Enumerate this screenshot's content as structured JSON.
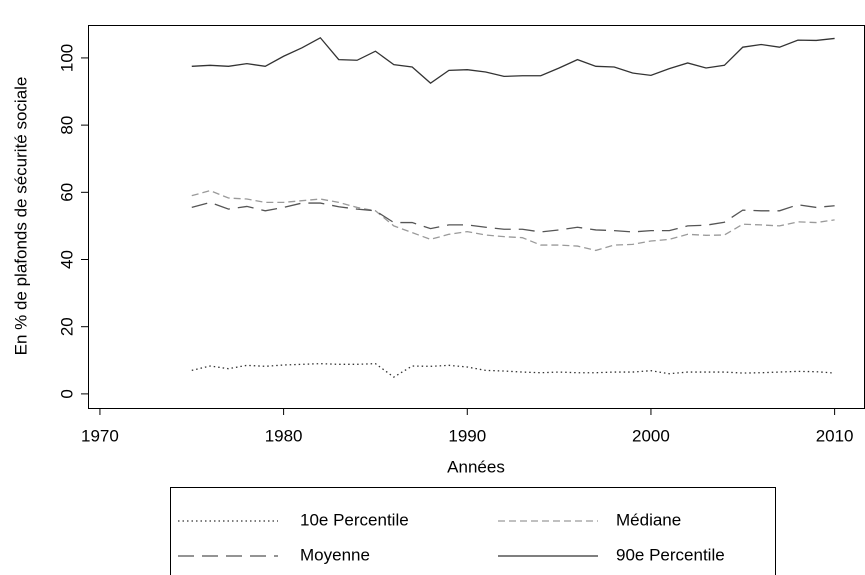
{
  "chart_data": {
    "type": "line",
    "xlabel": "Années",
    "ylabel": "En % de plafonds de sécurité sociale",
    "x": [
      1975,
      1976,
      1977,
      1978,
      1979,
      1980,
      1981,
      1982,
      1983,
      1984,
      1985,
      1986,
      1987,
      1988,
      1989,
      1990,
      1991,
      1992,
      1993,
      1994,
      1995,
      1996,
      1997,
      1998,
      1999,
      2000,
      2001,
      2002,
      2003,
      2004,
      2005,
      2006,
      2007,
      2008,
      2009,
      2010
    ],
    "series": [
      {
        "name": "10e Percentile",
        "color": "#333333",
        "linestyle": "dotted",
        "values": [
          7,
          8.3,
          7.5,
          8.5,
          8.2,
          8.6,
          8.8,
          9,
          8.8,
          8.8,
          9,
          5,
          8.3,
          8.2,
          8.5,
          8,
          7,
          6.8,
          6.5,
          6.3,
          6.5,
          6.3,
          6.3,
          6.5,
          6.5,
          6.9,
          6,
          6.5,
          6.5,
          6.5,
          6.2,
          6.3,
          6.5,
          6.7,
          6.6,
          6.2
        ]
      },
      {
        "name": "Médiane",
        "color": "#9a9a9a",
        "linestyle": "dashed",
        "values": [
          59,
          60.5,
          58.3,
          58,
          57,
          57,
          57.5,
          58,
          57,
          55.5,
          54.5,
          50,
          48,
          46,
          47.5,
          48.3,
          47.3,
          46.8,
          46.5,
          44.3,
          44.3,
          44,
          42.7,
          44.3,
          44.5,
          45.5,
          46,
          47.5,
          47.2,
          47.3,
          50.5,
          50.3,
          50,
          51.2,
          51,
          51.8
        ]
      },
      {
        "name": "Moyenne",
        "color": "#555555",
        "linestyle": "longdash",
        "values": [
          55.5,
          57,
          55,
          55.8,
          54.5,
          55.5,
          56.8,
          56.8,
          55.7,
          55,
          54.5,
          51,
          51,
          49.2,
          50.3,
          50.3,
          49.6,
          49,
          49,
          48.2,
          48.8,
          49.6,
          48.8,
          48.6,
          48.2,
          48.6,
          48.6,
          50,
          50.2,
          51.1,
          54.7,
          54.5,
          54.5,
          56.3,
          55.5,
          56
        ]
      },
      {
        "name": "90e Percentile",
        "color": "#333333",
        "linestyle": "solid",
        "values": [
          97.5,
          97.8,
          97.5,
          98.3,
          97.5,
          100.5,
          103,
          106,
          99.5,
          99.3,
          102,
          98,
          97.3,
          92.5,
          96.3,
          96.5,
          95.8,
          94.5,
          94.7,
          94.7,
          97,
          99.5,
          97.5,
          97.3,
          95.5,
          94.8,
          96.8,
          98.5,
          97,
          97.8,
          103.2,
          104,
          103.2,
          105.3,
          105.2,
          105.8
        ]
      }
    ],
    "xlim": [
      1969.35,
      2011.6
    ],
    "xticks": [
      1970,
      1980,
      1990,
      2000,
      2010
    ],
    "ylim": [
      -4.2,
      109.8
    ],
    "yticks": [
      0,
      20,
      40,
      60,
      80,
      100
    ],
    "grid": false,
    "legend": "bottom"
  }
}
